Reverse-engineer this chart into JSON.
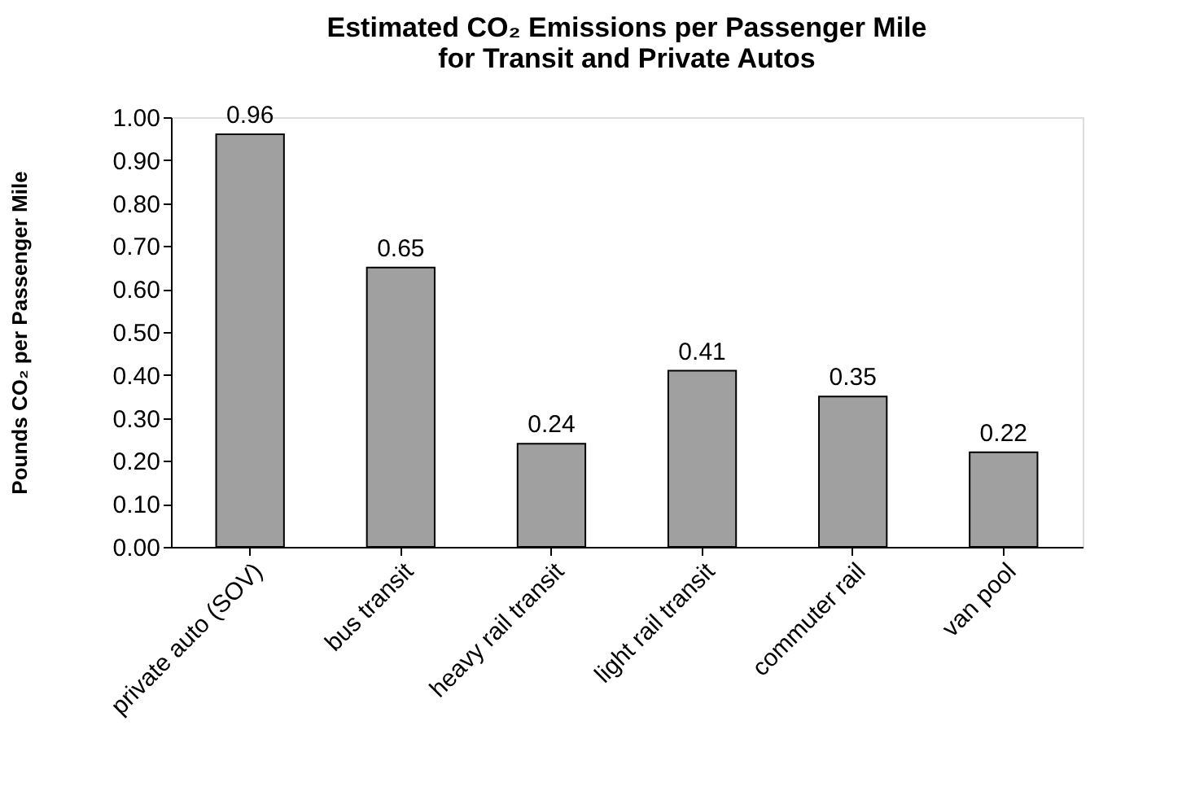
{
  "chart_data": {
    "type": "bar",
    "title": [
      "Estimated CO₂ Emissions per Passenger Mile",
      "for Transit and Private Autos"
    ],
    "ylabel": "Pounds CO₂ per Passenger Mile",
    "categories": [
      "private auto (SOV)",
      "bus transit",
      "heavy rail transit",
      "light rail transit",
      "commuter rail",
      "van pool"
    ],
    "values": [
      0.96,
      0.65,
      0.24,
      0.41,
      0.35,
      0.22
    ],
    "color": "#a0a0a0",
    "ylim": [
      0,
      1
    ],
    "yticks": [
      {
        "value": 0,
        "label": "0.00"
      },
      {
        "value": 0.1,
        "label": "0.10"
      },
      {
        "value": 0.2,
        "label": "0.20"
      },
      {
        "value": 0.3,
        "label": "0.30"
      },
      {
        "value": 0.4,
        "label": "0.40"
      },
      {
        "value": 0.5,
        "label": "0.50"
      },
      {
        "value": 0.6,
        "label": "0.60"
      },
      {
        "value": 0.7,
        "label": "0.70"
      },
      {
        "value": 0.8,
        "label": "0.80"
      },
      {
        "value": 0.9,
        "label": "0.90"
      },
      {
        "value": 1,
        "label": "1.00"
      }
    ],
    "data_labels": true,
    "grid": false
  }
}
